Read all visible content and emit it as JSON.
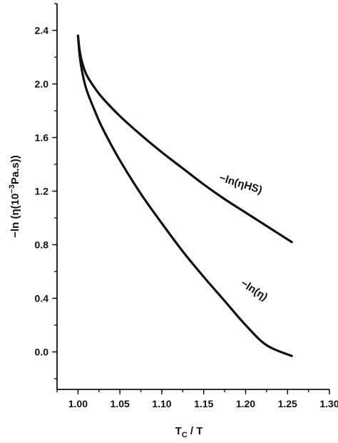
{
  "chart_data": {
    "type": "line",
    "xlabel": "T_C / T",
    "ylabel": "-ln (η(10^-3Pa.s))",
    "xlim": [
      0.975,
      1.3
    ],
    "ylim": [
      -0.28,
      2.6
    ],
    "grid": false,
    "x_ticks": [
      "1.00",
      "1.05",
      "1.10",
      "1.15",
      "1.20",
      "1.25",
      "1.30"
    ],
    "y_ticks": [
      "0.0",
      "0.4",
      "0.8",
      "1.2",
      "1.6",
      "2.0",
      "2.4"
    ],
    "series": [
      {
        "name": "−ln(ηHS)",
        "x": [
          1.0,
          1.002,
          1.005,
          1.01,
          1.02,
          1.03,
          1.05,
          1.075,
          1.1,
          1.125,
          1.15,
          1.175,
          1.2,
          1.225,
          1.255
        ],
        "y": [
          2.36,
          2.25,
          2.16,
          2.07,
          1.97,
          1.89,
          1.76,
          1.62,
          1.49,
          1.37,
          1.25,
          1.14,
          1.04,
          0.94,
          0.82
        ]
      },
      {
        "name": "−ln(η)",
        "x": [
          1.0,
          1.002,
          1.005,
          1.01,
          1.02,
          1.03,
          1.05,
          1.075,
          1.1,
          1.125,
          1.15,
          1.175,
          1.2,
          1.225,
          1.255
        ],
        "y": [
          2.36,
          2.21,
          2.09,
          1.96,
          1.8,
          1.66,
          1.43,
          1.18,
          0.96,
          0.75,
          0.56,
          0.38,
          0.2,
          0.05,
          -0.03
        ]
      }
    ],
    "annotations": [
      {
        "text": "−ln(ηHS)",
        "series": 0
      },
      {
        "text": "−ln(η)",
        "series": 1
      }
    ]
  }
}
